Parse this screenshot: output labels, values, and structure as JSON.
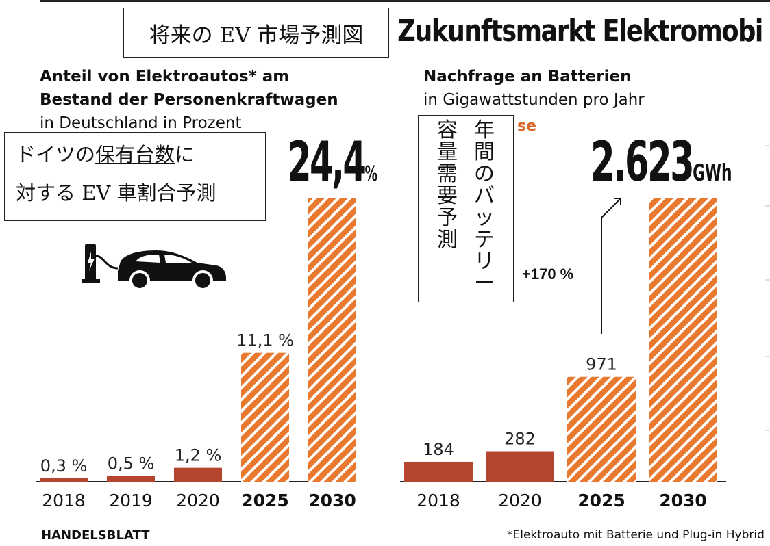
{
  "header": {
    "jp_title": "将来の EV 市場予測図",
    "main_title": "Zukunftsmarkt Elektromobi"
  },
  "left_chart": {
    "title_line1": "Anteil von Elektroautos* am",
    "title_line2": "Bestand der Personenkraftwagen",
    "subtitle": "in Deutschland in Prozent",
    "highlight_value": "24,4",
    "highlight_unit": "%",
    "jp_annotation": {
      "line1_pre": "ドイツの",
      "line1_underlined": "保有台数",
      "line1_post": "に",
      "line2": "対する EV 車割合予測"
    },
    "icon": "ev-car-charging-icon"
  },
  "right_chart": {
    "title": "Nachfrage an Batterien",
    "subtitle": "in Gigawattstunden pro Jahr",
    "partial_label": "se",
    "highlight_value": "2.623",
    "highlight_unit": "GWh",
    "growth_label": "+170 %",
    "jp_annotation": {
      "col1": "年\n間\nの\nバ\nッ\nテ\nリ\nー",
      "col2": "容\n量\n需\n要\n予\n測"
    }
  },
  "footer": {
    "source": "HANDELSBLATT",
    "footnote": "*Elektroauto mit Batterie und Plug-in Hybrid"
  },
  "colors": {
    "actual": "#b5452e",
    "forecast": "#e8792f",
    "forecast_stripe": "#ffffff",
    "accent_text": "#d9692a"
  },
  "chart_data": [
    {
      "type": "bar",
      "title": "Anteil von Elektroautos* am Bestand der Personenkraftwagen",
      "ylabel": "in Deutschland in Prozent",
      "categories": [
        "2018",
        "2019",
        "2020",
        "2025",
        "2030"
      ],
      "values": [
        0.3,
        0.5,
        1.2,
        11.1,
        24.4
      ],
      "labels": [
        "0,3 %",
        "0,5 %",
        "1,2 %",
        "11,1 %",
        ""
      ],
      "forecast": [
        false,
        false,
        false,
        true,
        true
      ],
      "ylim": [
        0,
        24.4
      ]
    },
    {
      "type": "bar",
      "title": "Nachfrage an Batterien",
      "ylabel": "in Gigawattstunden pro Jahr",
      "categories": [
        "2018",
        "2020",
        "2025",
        "2030"
      ],
      "values": [
        184,
        282,
        971,
        2623
      ],
      "labels": [
        "184",
        "282",
        "971",
        ""
      ],
      "forecast": [
        false,
        false,
        true,
        true
      ],
      "ylim": [
        0,
        2623
      ]
    }
  ]
}
